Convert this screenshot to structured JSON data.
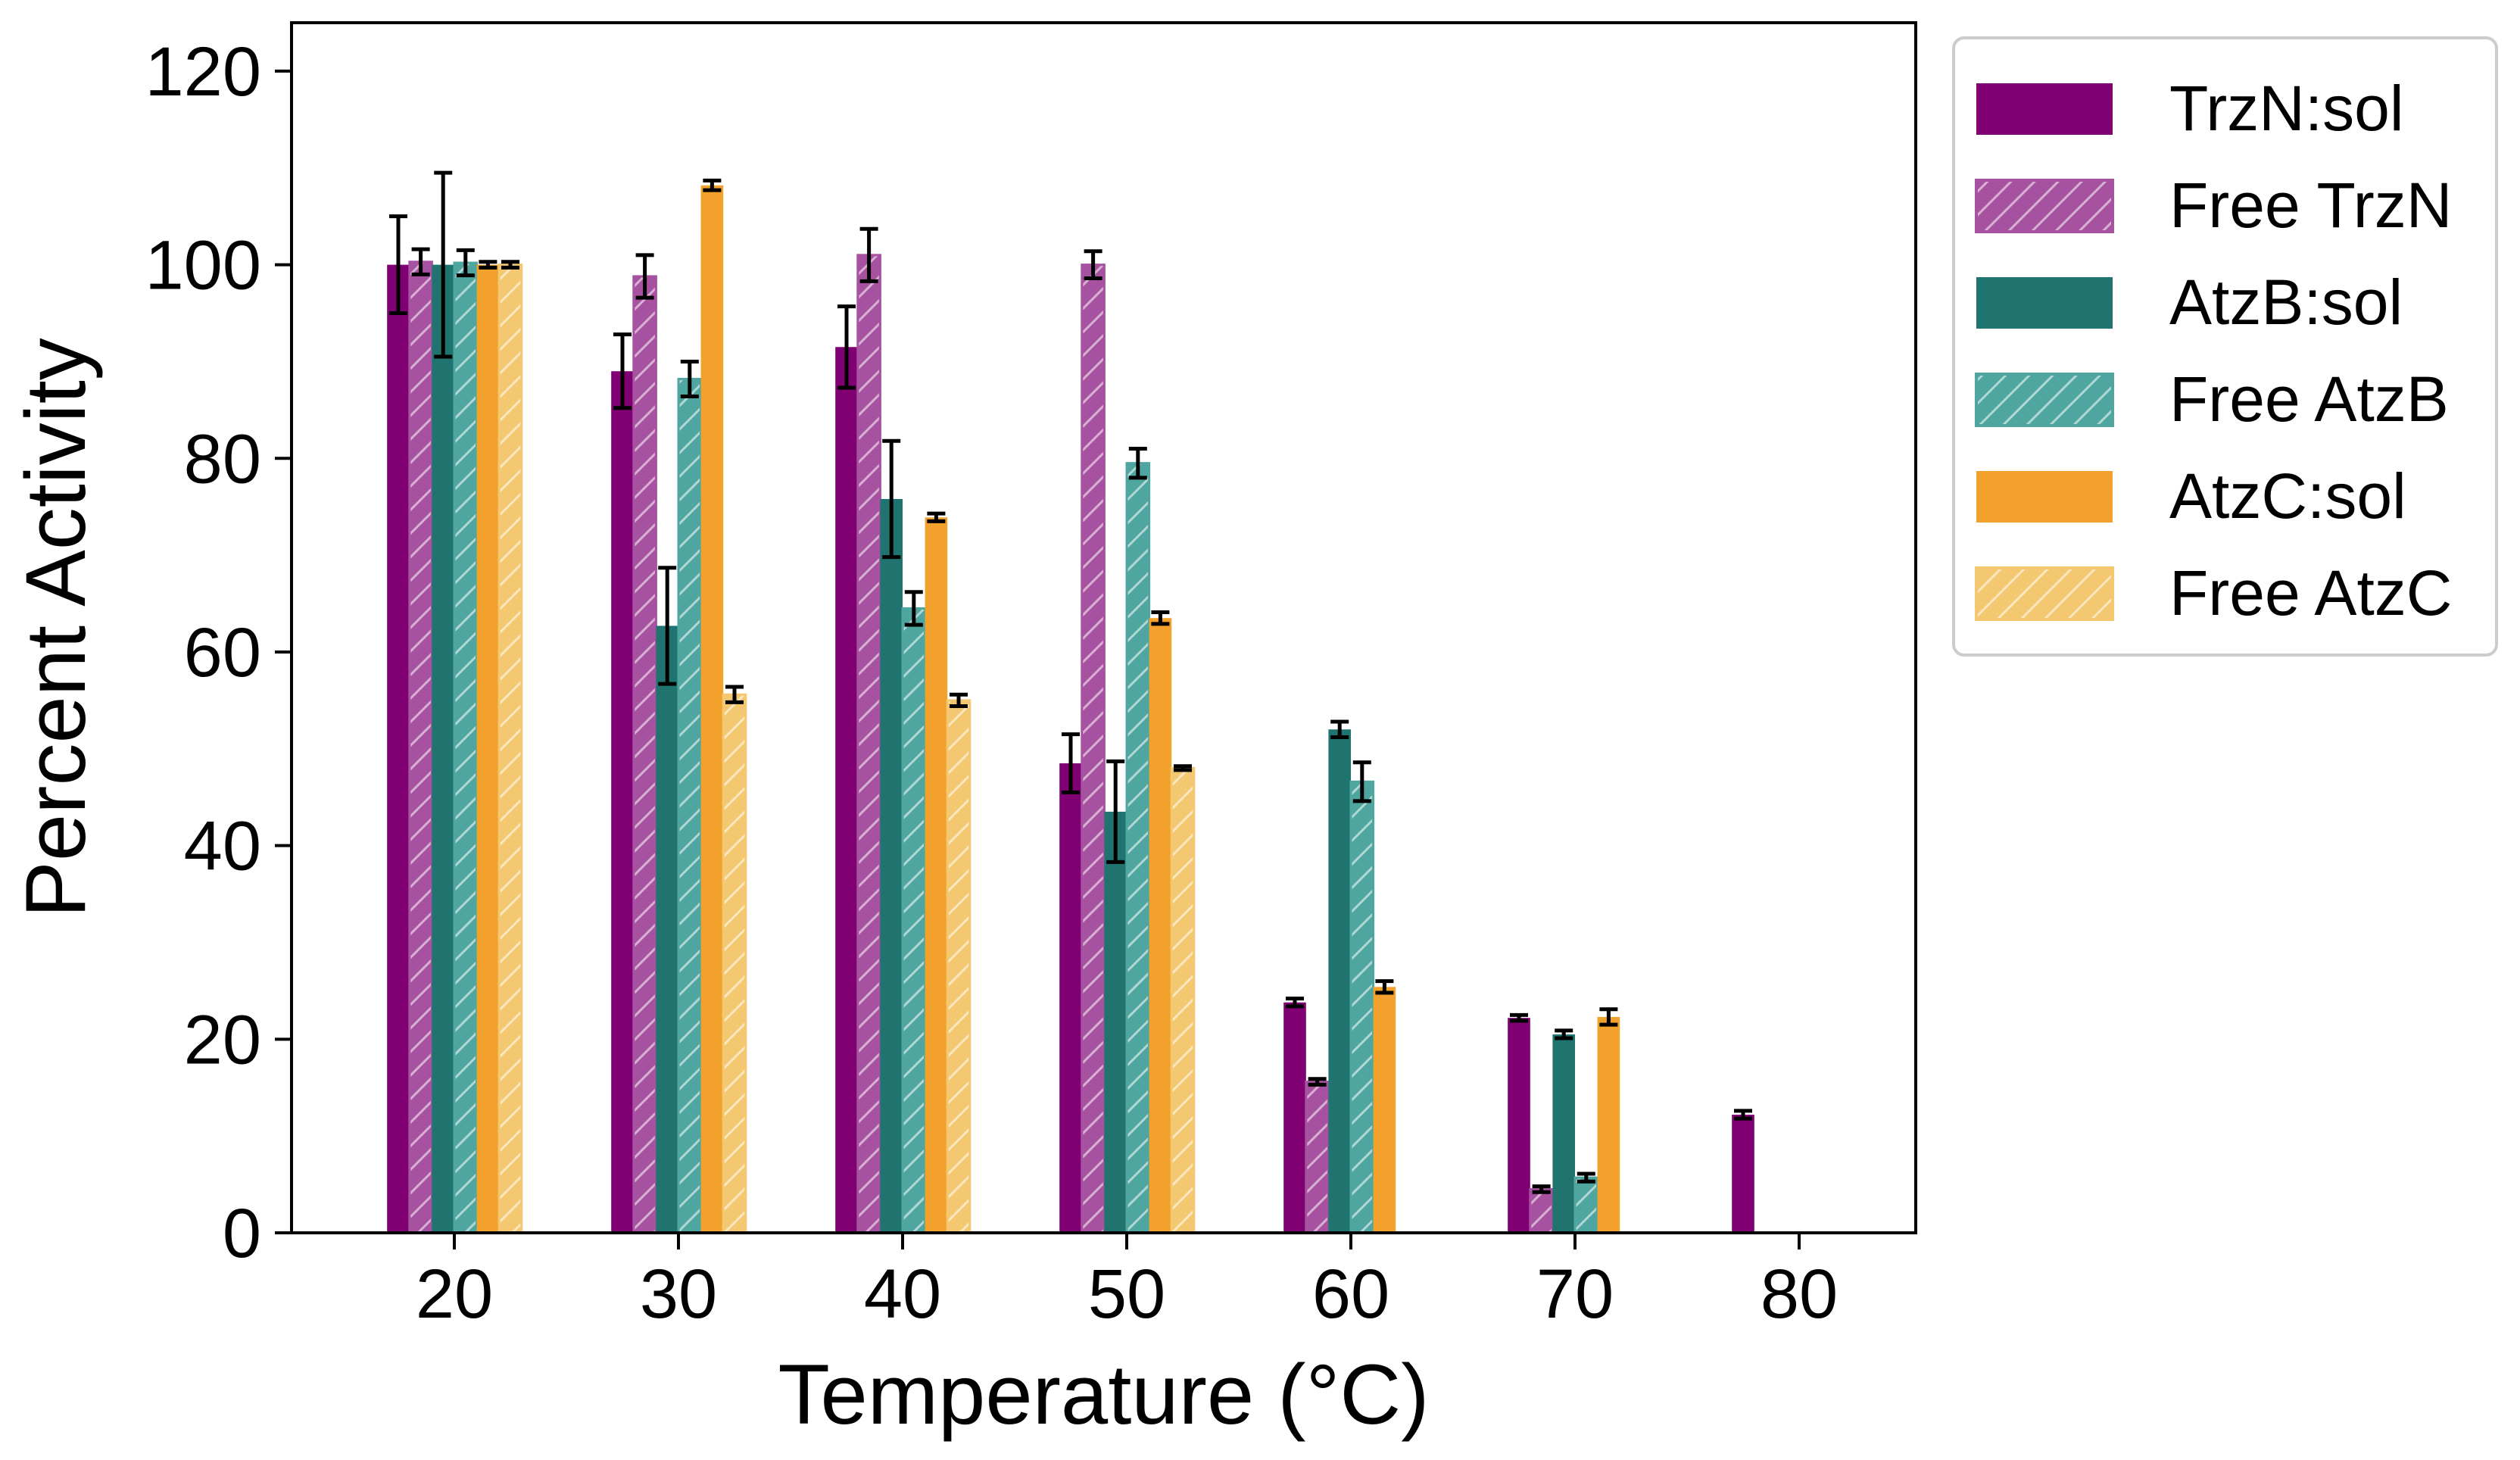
{
  "chart_data": {
    "type": "bar",
    "title": "",
    "xlabel": "Temperature (°C)",
    "ylabel": "Percent Activity",
    "ylim": [
      0,
      125
    ],
    "yticks": [
      "0",
      "20",
      "40",
      "60",
      "80",
      "100",
      "120"
    ],
    "categories": [
      "20",
      "30",
      "40",
      "50",
      "60",
      "70",
      "80"
    ],
    "grid": false,
    "legend_position": "outside-right-top",
    "series": [
      {
        "name": "TrzN:sol",
        "color": "#800074",
        "hatched": false,
        "values": [
          100,
          89,
          91.5,
          48.5,
          23.8,
          22.2,
          12.2
        ],
        "errors": [
          5,
          3.8,
          4.2,
          3,
          0.4,
          0.3,
          0.4
        ]
      },
      {
        "name": "Free TrzN",
        "color": "#a752a0",
        "hatched": true,
        "values": [
          100.3,
          98.8,
          101,
          100,
          15.6,
          4.5,
          0
        ],
        "errors": [
          1.3,
          2.2,
          2.7,
          1.4,
          0.3,
          0.3,
          0
        ]
      },
      {
        "name": "AtzB:sol",
        "color": "#1f7470",
        "hatched": false,
        "values": [
          100,
          62.7,
          75.8,
          43.5,
          52,
          20.5,
          0
        ],
        "errors": [
          9.5,
          6,
          6,
          5.2,
          0.8,
          0.4,
          0
        ]
      },
      {
        "name": "Free AtzB",
        "color": "#4fa6a0",
        "hatched": true,
        "values": [
          100.2,
          88.2,
          64.5,
          79.5,
          46.6,
          5.7,
          0
        ],
        "errors": [
          1.3,
          1.8,
          1.7,
          1.5,
          2,
          0.4,
          0
        ]
      },
      {
        "name": "AtzC:sol",
        "color": "#f2a22c",
        "hatched": false,
        "values": [
          100,
          108.2,
          73.9,
          63.5,
          25.4,
          22.3,
          0
        ],
        "errors": [
          0.3,
          0.5,
          0.4,
          0.6,
          0.6,
          0.8,
          0
        ]
      },
      {
        "name": "Free AtzC",
        "color": "#f4c870",
        "hatched": true,
        "values": [
          100,
          55.6,
          55,
          48,
          0,
          0,
          0
        ],
        "errors": [
          0.3,
          0.8,
          0.6,
          0.2,
          0,
          0,
          0
        ]
      }
    ]
  }
}
